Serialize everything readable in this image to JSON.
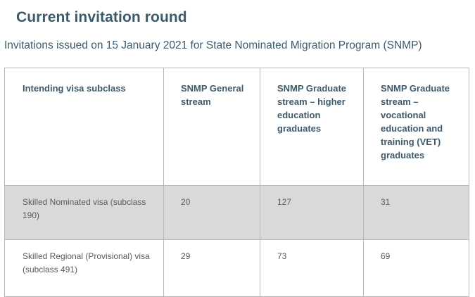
{
  "page": {
    "title": "Current invitation round",
    "subtitle": "Invitations issued on 15 January 2021 for State Nominated Migration Program (SNMP)"
  },
  "table": {
    "headers": [
      "Intending visa subclass",
      "SNMP General stream",
      "SNMP Graduate stream – higher education graduates",
      "SNMP Graduate stream – vocational education and training (VET) graduates"
    ],
    "rows": [
      [
        "Skilled Nominated visa (subclass 190)",
        "20",
        "127",
        "31"
      ],
      [
        "Skilled Regional (Provisional) visa (subclass 491)",
        "29",
        "73",
        "69"
      ]
    ]
  }
}
